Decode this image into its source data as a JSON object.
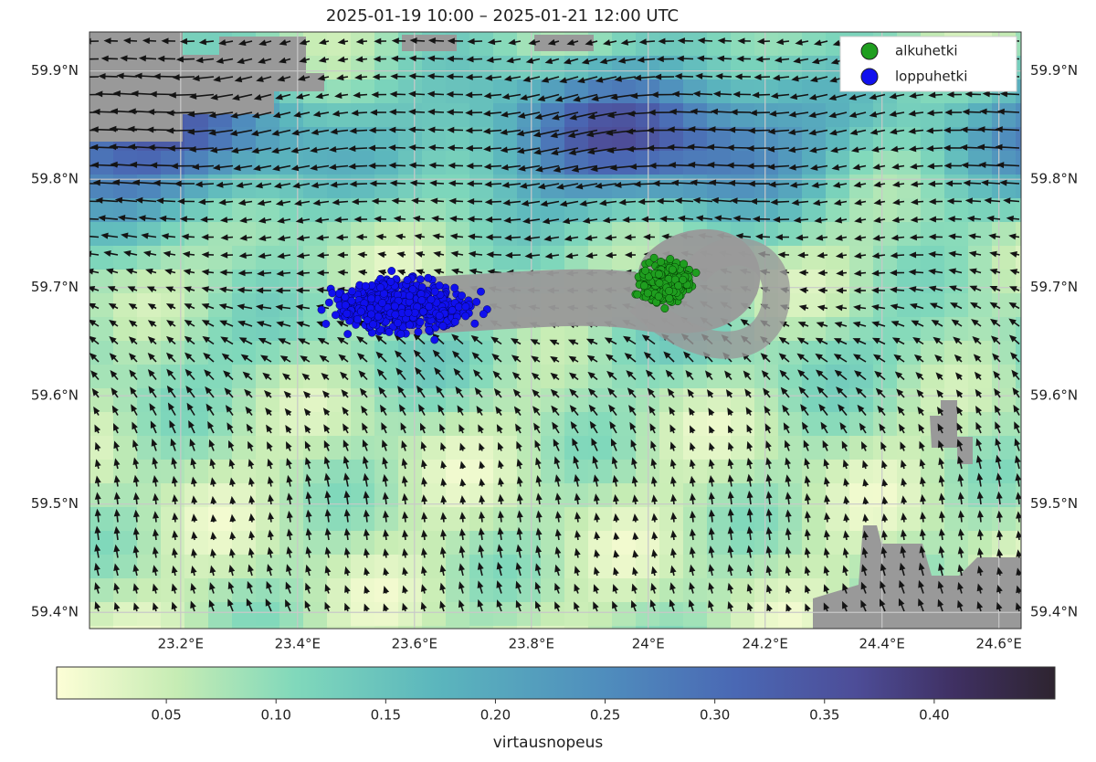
{
  "title": "2025-01-19 10:00  –  2025-01-21 12:00 UTC",
  "map": {
    "xlim": [
      23.044,
      24.638
    ],
    "ylim": [
      59.385,
      59.936
    ],
    "grid": true,
    "xticks": [
      {
        "value": 23.2,
        "label": "23.2°E"
      },
      {
        "value": 23.4,
        "label": "23.4°E"
      },
      {
        "value": 23.6,
        "label": "23.6°E"
      },
      {
        "value": 23.8,
        "label": "23.8°E"
      },
      {
        "value": 24.0,
        "label": "24°E"
      },
      {
        "value": 24.2,
        "label": "24.2°E"
      },
      {
        "value": 24.4,
        "label": "24.4°E"
      },
      {
        "value": 24.6,
        "label": "24.6°E"
      }
    ],
    "yticks": [
      {
        "value": 59.4,
        "label": "59.4°N"
      },
      {
        "value": 59.5,
        "label": "59.5°N"
      },
      {
        "value": 59.6,
        "label": "59.6°N"
      },
      {
        "value": 59.7,
        "label": "59.7°N"
      },
      {
        "value": 59.8,
        "label": "59.8°N"
      },
      {
        "value": 59.9,
        "label": "59.9°N"
      }
    ]
  },
  "legend": {
    "position": "upper right",
    "entries": [
      {
        "label": "alkuhetki",
        "color": "#1f9e1f"
      },
      {
        "label": "loppuhetki",
        "color": "#1010ee"
      }
    ]
  },
  "colorbar": {
    "lim": [
      0,
      0.455
    ],
    "label": "virtausnopeus",
    "ticks": [
      0.05,
      {
        "value": 0.1,
        "label": "0.10"
      },
      0.15,
      {
        "value": 0.2,
        "label": "0.20"
      },
      0.25,
      {
        "value": 0.3,
        "label": "0.30"
      },
      0.35,
      {
        "value": 0.4,
        "label": "0.40"
      }
    ]
  }
}
